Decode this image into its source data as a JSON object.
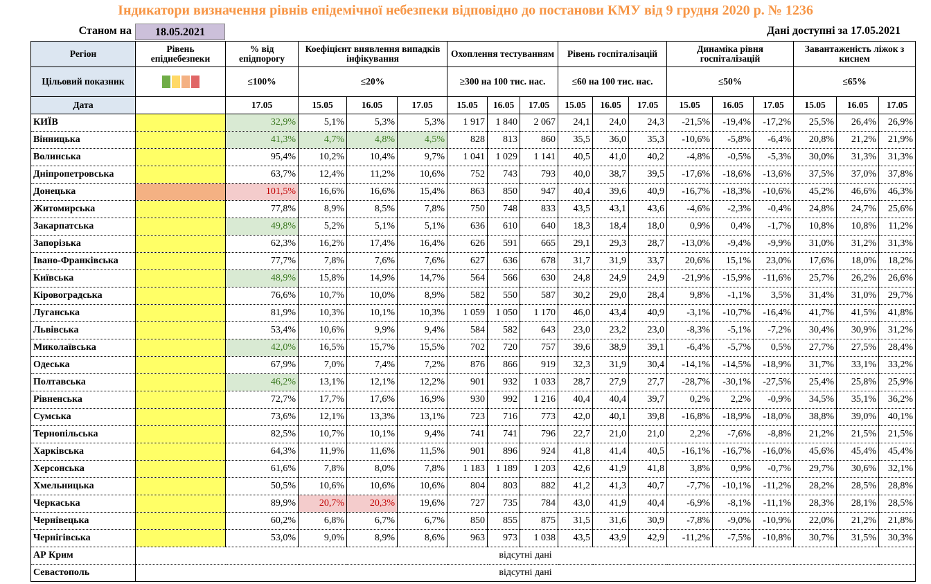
{
  "header": {
    "title": "Індикатори визначення рівнів епідемічної небезпеки відповідно до постанови КМУ від 9 грудня 2020 р. № 1236",
    "as_of_label": "Станом на",
    "as_of_date": "18.05.2021",
    "available_label": "Дані доступні за",
    "available_date": "17.05.2021"
  },
  "table": {
    "columns": [
      "Регіон",
      "Рівень епіднебезпеки",
      "% від епідпорогу",
      "Коефіцієнт виявлення випадків інфікування",
      "Охоплення тестуванням",
      "Рівень госпіталізацій",
      "Динаміка рівня госпіталізацій",
      "Завантаженість ліжок з киснем"
    ],
    "target_label": "Цільовий показник",
    "targets": [
      "≤100%",
      "≤20%",
      "≥300 на 100 тис. нас.",
      "≤60 на 100 тис. нас.",
      "≤50%",
      "≤65%"
    ],
    "date_label": "Дата",
    "dates": [
      "17.05",
      "15.05",
      "16.05",
      "17.05",
      "15.05",
      "16.05",
      "17.05",
      "15.05",
      "16.05",
      "17.05",
      "15.05",
      "16.05",
      "17.05",
      "15.05",
      "16.05",
      "17.05"
    ],
    "rows": [
      {
        "region": "КИЇВ",
        "level_color": "#ffff66",
        "cells": [
          "32,9%",
          "5,1%",
          "5,3%",
          "5,3%",
          "1 917",
          "1 840",
          "2 067",
          "24,1",
          "24,0",
          "24,3",
          "-21,5%",
          "-19,4%",
          "-17,2%",
          "25,5%",
          "26,4%",
          "26,9%"
        ],
        "green": [
          0
        ]
      },
      {
        "region": "Вінницька",
        "level_color": "#ffff66",
        "cells": [
          "41,3%",
          "4,7%",
          "4,8%",
          "4,5%",
          "828",
          "813",
          "860",
          "35,5",
          "36,0",
          "35,3",
          "-10,6%",
          "-5,8%",
          "-6,4%",
          "20,8%",
          "21,2%",
          "21,9%"
        ],
        "green": [
          0,
          1,
          2,
          3
        ]
      },
      {
        "region": "Волинська",
        "level_color": "#ffff66",
        "cells": [
          "95,4%",
          "10,2%",
          "10,4%",
          "9,7%",
          "1 041",
          "1 029",
          "1 141",
          "40,5",
          "41,0",
          "40,2",
          "-4,8%",
          "-0,5%",
          "-5,3%",
          "30,0%",
          "31,3%",
          "31,3%"
        ]
      },
      {
        "region": "Дніпропетровська",
        "level_color": "#ffff66",
        "cells": [
          "63,7%",
          "12,4%",
          "11,2%",
          "10,6%",
          "752",
          "743",
          "793",
          "40,0",
          "38,7",
          "39,5",
          "-17,6%",
          "-18,6%",
          "-13,6%",
          "37,5%",
          "37,0%",
          "37,8%"
        ]
      },
      {
        "region": "Донецька",
        "level_color": "#f4b183",
        "cells": [
          "101,5%",
          "16,6%",
          "16,6%",
          "15,4%",
          "863",
          "850",
          "947",
          "40,4",
          "39,6",
          "40,9",
          "-16,7%",
          "-18,3%",
          "-10,6%",
          "45,2%",
          "46,6%",
          "46,3%"
        ],
        "red": [
          0
        ]
      },
      {
        "region": "Житомирська",
        "level_color": "#ffff66",
        "cells": [
          "77,8%",
          "8,9%",
          "8,5%",
          "7,8%",
          "750",
          "748",
          "833",
          "43,5",
          "43,1",
          "43,6",
          "-4,6%",
          "-2,3%",
          "-0,4%",
          "24,8%",
          "24,7%",
          "25,6%"
        ]
      },
      {
        "region": "Закарпатська",
        "level_color": "#ffff66",
        "cells": [
          "49,8%",
          "5,2%",
          "5,1%",
          "5,1%",
          "636",
          "610",
          "640",
          "18,3",
          "18,4",
          "18,0",
          "0,9%",
          "0,4%",
          "-1,7%",
          "10,8%",
          "10,8%",
          "11,2%"
        ],
        "green": [
          0
        ]
      },
      {
        "region": "Запорізька",
        "level_color": "#ffff66",
        "cells": [
          "62,3%",
          "16,2%",
          "17,4%",
          "16,4%",
          "626",
          "591",
          "665",
          "29,1",
          "29,3",
          "28,7",
          "-13,0%",
          "-9,4%",
          "-9,9%",
          "31,0%",
          "31,2%",
          "31,3%"
        ]
      },
      {
        "region": "Івано-Франківська",
        "level_color": "#ffff66",
        "cells": [
          "77,7%",
          "7,8%",
          "7,6%",
          "7,6%",
          "627",
          "636",
          "678",
          "31,7",
          "31,9",
          "33,7",
          "20,6%",
          "15,1%",
          "23,0%",
          "17,6%",
          "18,0%",
          "18,2%"
        ]
      },
      {
        "region": "Київська",
        "level_color": "#ffff66",
        "cells": [
          "48,9%",
          "15,8%",
          "14,9%",
          "14,7%",
          "564",
          "566",
          "630",
          "24,8",
          "24,9",
          "24,9",
          "-21,9%",
          "-15,9%",
          "-11,6%",
          "25,7%",
          "26,2%",
          "26,6%"
        ],
        "green": [
          0
        ]
      },
      {
        "region": "Кіровоградська",
        "level_color": "#ffff66",
        "cells": [
          "76,6%",
          "10,7%",
          "10,0%",
          "8,9%",
          "582",
          "550",
          "587",
          "30,2",
          "29,0",
          "28,4",
          "9,8%",
          "-1,1%",
          "3,5%",
          "31,4%",
          "31,0%",
          "29,7%"
        ]
      },
      {
        "region": "Луганська",
        "level_color": "#ffff66",
        "cells": [
          "81,9%",
          "10,3%",
          "10,1%",
          "10,3%",
          "1 059",
          "1 050",
          "1 170",
          "46,0",
          "43,4",
          "40,9",
          "-3,1%",
          "-10,7%",
          "-16,4%",
          "41,7%",
          "41,5%",
          "41,8%"
        ]
      },
      {
        "region": "Львівська",
        "level_color": "#ffff66",
        "cells": [
          "53,4%",
          "10,6%",
          "9,9%",
          "9,4%",
          "584",
          "582",
          "643",
          "23,0",
          "23,2",
          "23,0",
          "-8,3%",
          "-5,1%",
          "-7,2%",
          "30,4%",
          "30,9%",
          "31,2%"
        ]
      },
      {
        "region": "Миколаївська",
        "level_color": "#ffff66",
        "cells": [
          "42,0%",
          "16,5%",
          "15,7%",
          "15,5%",
          "702",
          "720",
          "757",
          "39,6",
          "38,9",
          "39,1",
          "-6,4%",
          "-5,7%",
          "0,5%",
          "27,7%",
          "27,5%",
          "28,4%"
        ],
        "green": [
          0
        ]
      },
      {
        "region": "Одеська",
        "level_color": "#ffff66",
        "cells": [
          "67,9%",
          "7,0%",
          "7,4%",
          "7,2%",
          "876",
          "866",
          "919",
          "32,3",
          "31,9",
          "30,4",
          "-14,1%",
          "-14,5%",
          "-18,9%",
          "31,7%",
          "33,1%",
          "33,2%"
        ]
      },
      {
        "region": "Полтавська",
        "level_color": "#ffff66",
        "cells": [
          "46,2%",
          "13,1%",
          "12,1%",
          "12,2%",
          "901",
          "932",
          "1 033",
          "28,7",
          "27,9",
          "27,7",
          "-28,7%",
          "-30,1%",
          "-27,5%",
          "25,4%",
          "25,8%",
          "25,9%"
        ],
        "green": [
          0
        ]
      },
      {
        "region": "Рівненська",
        "level_color": "#ffff66",
        "cells": [
          "72,7%",
          "17,7%",
          "17,6%",
          "16,9%",
          "930",
          "992",
          "1 216",
          "40,4",
          "40,4",
          "39,7",
          "0,2%",
          "2,2%",
          "-0,9%",
          "34,5%",
          "35,1%",
          "36,2%"
        ]
      },
      {
        "region": "Сумська",
        "level_color": "#ffff66",
        "cells": [
          "73,6%",
          "12,1%",
          "13,3%",
          "13,1%",
          "723",
          "716",
          "773",
          "42,0",
          "40,1",
          "39,8",
          "-16,8%",
          "-18,9%",
          "-18,0%",
          "38,8%",
          "39,0%",
          "40,1%"
        ]
      },
      {
        "region": "Тернопільська",
        "level_color": "#ffff66",
        "cells": [
          "82,5%",
          "10,7%",
          "10,1%",
          "9,4%",
          "741",
          "741",
          "796",
          "22,7",
          "21,0",
          "21,0",
          "2,2%",
          "-7,6%",
          "-8,8%",
          "21,2%",
          "21,5%",
          "21,5%"
        ]
      },
      {
        "region": "Харківська",
        "level_color": "#ffff66",
        "cells": [
          "64,3%",
          "11,9%",
          "11,6%",
          "11,5%",
          "901",
          "896",
          "924",
          "41,8",
          "41,4",
          "40,5",
          "-16,1%",
          "-16,7%",
          "-16,0%",
          "45,6%",
          "45,4%",
          "45,4%"
        ]
      },
      {
        "region": "Херсонська",
        "level_color": "#ffff66",
        "cells": [
          "61,6%",
          "7,8%",
          "8,0%",
          "7,8%",
          "1 183",
          "1 189",
          "1 203",
          "42,6",
          "41,9",
          "41,8",
          "3,8%",
          "0,9%",
          "-0,7%",
          "29,7%",
          "30,6%",
          "32,1%"
        ]
      },
      {
        "region": "Хмельницька",
        "level_color": "#ffff66",
        "cells": [
          "50,5%",
          "10,6%",
          "10,6%",
          "10,6%",
          "804",
          "803",
          "882",
          "41,2",
          "41,3",
          "40,7",
          "-7,7%",
          "-10,1%",
          "-11,2%",
          "28,2%",
          "28,5%",
          "28,8%"
        ]
      },
      {
        "region": "Черкаська",
        "level_color": "#ffff66",
        "cells": [
          "89,9%",
          "20,7%",
          "20,3%",
          "19,6%",
          "727",
          "735",
          "784",
          "43,0",
          "41,9",
          "40,4",
          "-6,9%",
          "-8,1%",
          "-11,1%",
          "28,3%",
          "28,1%",
          "28,5%"
        ],
        "red": [
          1,
          2
        ]
      },
      {
        "region": "Чернівецька",
        "level_color": "#ffff66",
        "cells": [
          "60,2%",
          "6,8%",
          "6,7%",
          "6,7%",
          "850",
          "855",
          "875",
          "31,5",
          "31,6",
          "30,9",
          "-7,8%",
          "-9,0%",
          "-10,9%",
          "22,0%",
          "21,2%",
          "21,8%"
        ]
      },
      {
        "region": "Чернігівська",
        "level_color": "#ffff66",
        "cells": [
          "53,0%",
          "9,0%",
          "8,9%",
          "8,6%",
          "963",
          "973",
          "1 038",
          "43,5",
          "43,9",
          "42,9",
          "-11,2%",
          "-7,5%",
          "-10,8%",
          "30,7%",
          "31,5%",
          "30,3%"
        ]
      }
    ],
    "no_data_rows": [
      {
        "region": "АР Крим",
        "note": "відсутні дані"
      },
      {
        "region": "Севастополь",
        "note": "відсутні дані"
      }
    ]
  }
}
